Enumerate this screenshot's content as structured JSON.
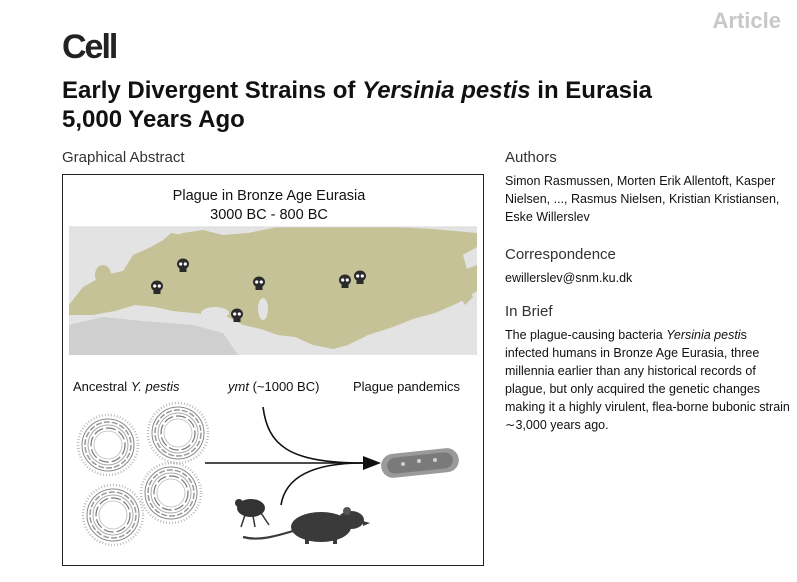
{
  "header": {
    "article_tag": "Article",
    "journal": "Cell"
  },
  "title": {
    "part1": "Early Divergent Strains of ",
    "italic": "Yersinia pestis",
    "part2": " in Eurasia",
    "line2": "5,000 Years Ago"
  },
  "graphical_abstract": {
    "label": "Graphical Abstract",
    "map_title_line1": "Plague in Bronze Age Eurasia",
    "map_title_line2": "3000 BC - 800 BC",
    "label_ancestral_prefix": "Ancestral ",
    "label_ancestral_italic": "Y. pestis",
    "label_ymt_italic": "ymt",
    "label_ymt_suffix": " (~1000 BC)",
    "label_pandemics": "Plague pandemics",
    "colors": {
      "land": "#c4c296",
      "sea": "#e3e3e3",
      "africa": "#cfcfcf",
      "skull": "#2a2a2a"
    },
    "icons": [
      "skull-icon",
      "genome-circle-icon",
      "flea-icon",
      "rat-icon",
      "bacterium-icon",
      "arrow-icon"
    ]
  },
  "authors": {
    "heading": "Authors",
    "text": "Simon Rasmussen, Morten Erik Allentoft, Kasper Nielsen, ..., Rasmus Nielsen, Kristian Kristiansen, Eske Willerslev"
  },
  "correspondence": {
    "heading": "Correspondence",
    "email": "ewillerslev@snm.ku.dk"
  },
  "in_brief": {
    "heading": "In Brief",
    "text_prefix": "The plague-causing bacteria ",
    "italic_1": "Yersinia pesti",
    "text_mid": "s infected humans in Bronze Age Eurasia, three millennia earlier than any historical records of plague, but only acquired the genetic changes making it a highly virulent, flea-borne bubonic strain ",
    "approx": "∼",
    "text_end": "3,000 years ago."
  }
}
